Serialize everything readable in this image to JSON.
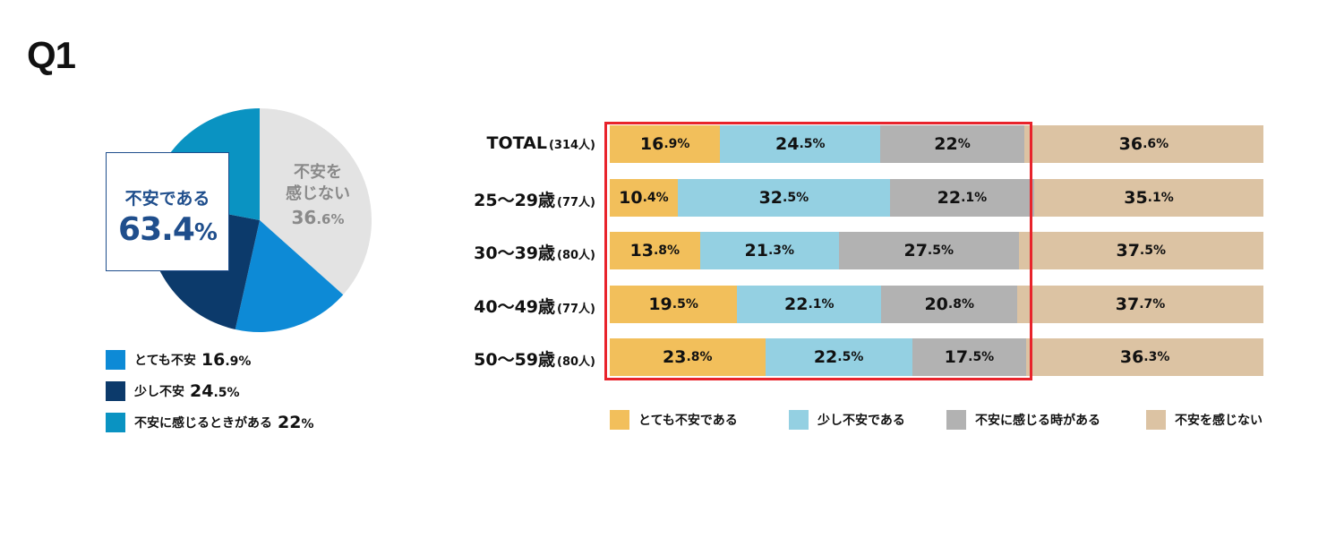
{
  "question": "Q1",
  "colors": {
    "very_anxious_pie": "#0d8ad6",
    "slightly_anxious_pie": "#0c3a6b",
    "sometimes_anxious_pie": "#0a93c2",
    "not_anxious_pie": "#e3e3e3",
    "very_anxious_bar": "#f2bf5b",
    "slightly_anxious_bar": "#94d0e2",
    "sometimes_anxious_bar": "#b2b2b2",
    "not_anxious_bar": "#dcc3a3",
    "highlight": "#e8232b",
    "callout": "#1f4e8c"
  },
  "chart_data": [
    {
      "type": "pie",
      "slices": [
        {
          "name": "とても不安",
          "value": 16.9,
          "int": "16",
          "dec": ".9%"
        },
        {
          "name": "少し不安",
          "value": 24.5,
          "int": "24",
          "dec": ".5%"
        },
        {
          "name": "不安に感じるときがある",
          "value": 22.0,
          "int": "22",
          "dec": "%"
        },
        {
          "name": "不安を感じない",
          "value": 36.6
        }
      ],
      "callout": {
        "label": "不安である",
        "value_int": "63.4",
        "value_pct": "%"
      },
      "negative_label": {
        "line1": "不安を",
        "line2": "感じない",
        "int": "36",
        "dec": ".6%"
      }
    },
    {
      "type": "bar",
      "stacked": true,
      "orientation": "horizontal",
      "xlim": [
        0,
        100
      ],
      "series": [
        {
          "name": "とても不安である"
        },
        {
          "name": "少し不安である"
        },
        {
          "name": "不安に感じる時がある"
        },
        {
          "name": "不安を感じない"
        }
      ],
      "rows": [
        {
          "label": "TOTAL",
          "n": "(314人)",
          "values": [
            16.9,
            24.5,
            22.0,
            36.6
          ],
          "labels": [
            [
              "16",
              ".9%"
            ],
            [
              "24",
              ".5%"
            ],
            [
              "22",
              "%"
            ],
            [
              "36",
              ".6%"
            ]
          ]
        },
        {
          "label": "25〜29歳",
          "n": "(77人)",
          "values": [
            10.4,
            32.5,
            22.1,
            35.1
          ],
          "labels": [
            [
              "10",
              ".4%"
            ],
            [
              "32",
              ".5%"
            ],
            [
              "22",
              ".1%"
            ],
            [
              "35",
              ".1%"
            ]
          ]
        },
        {
          "label": "30〜39歳",
          "n": "(80人)",
          "values": [
            13.8,
            21.3,
            27.5,
            37.5
          ],
          "labels": [
            [
              "13",
              ".8%"
            ],
            [
              "21",
              ".3%"
            ],
            [
              "27",
              ".5%"
            ],
            [
              "37",
              ".5%"
            ]
          ]
        },
        {
          "label": "40〜49歳",
          "n": "(77人)",
          "values": [
            19.5,
            22.1,
            20.8,
            37.7
          ],
          "labels": [
            [
              "19",
              ".5%"
            ],
            [
              "22",
              ".1%"
            ],
            [
              "20",
              ".8%"
            ],
            [
              "37",
              ".7%"
            ]
          ]
        },
        {
          "label": "50〜59歳",
          "n": "(80人)",
          "values": [
            23.8,
            22.5,
            17.5,
            36.3
          ],
          "labels": [
            [
              "23",
              ".8%"
            ],
            [
              "22",
              ".5%"
            ],
            [
              "17",
              ".5%"
            ],
            [
              "36",
              ".3%"
            ]
          ]
        }
      ]
    }
  ]
}
